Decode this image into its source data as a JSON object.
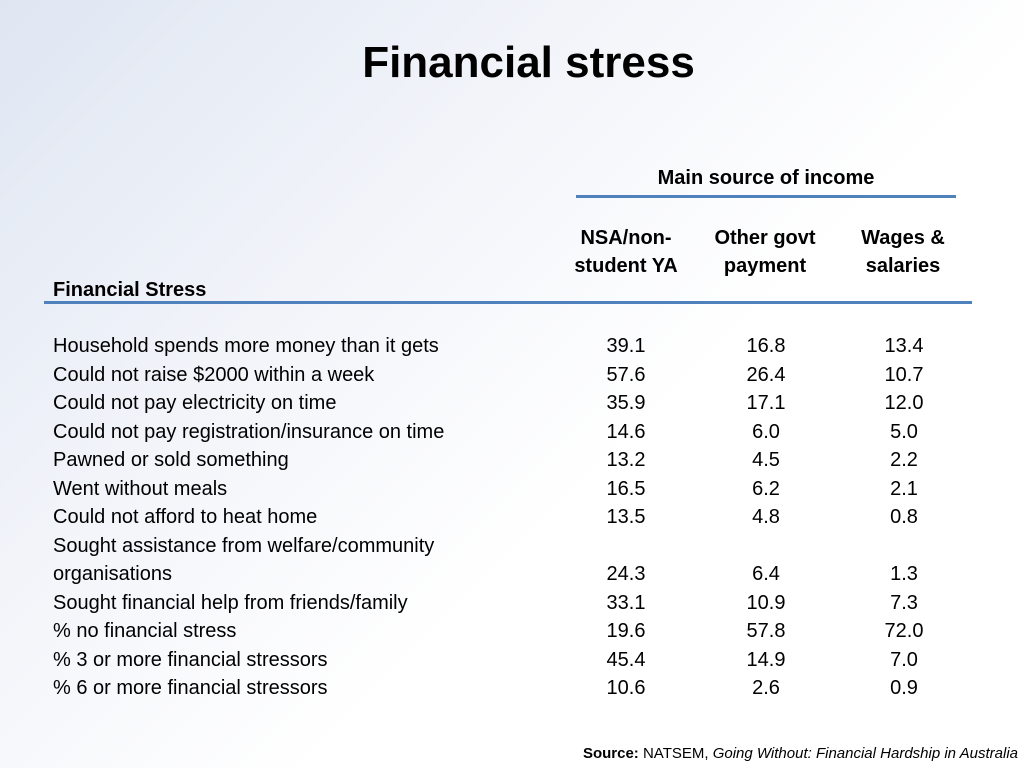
{
  "title": "Financial stress",
  "table": {
    "group_header": "Main source of income",
    "row_header": "Financial Stress",
    "columns": [
      "NSA/non-\nstudent YA",
      "Other govt\npayment",
      "Wages &\nsalaries"
    ],
    "rows": [
      {
        "label": "Household spends more money than it gets",
        "values": [
          "39.1",
          "16.8",
          "13.4"
        ]
      },
      {
        "label": "Could not raise $2000 within a week",
        "values": [
          "57.6",
          "26.4",
          "10.7"
        ]
      },
      {
        "label": "Could not pay electricity on time",
        "values": [
          "35.9",
          "17.1",
          "12.0"
        ]
      },
      {
        "label": "Could not pay registration/insurance on time",
        "values": [
          "14.6",
          "6.0",
          "5.0"
        ]
      },
      {
        "label": "Pawned or sold something",
        "values": [
          "13.2",
          "4.5",
          "2.2"
        ]
      },
      {
        "label": "Went without meals",
        "values": [
          "16.5",
          "6.2",
          "2.1"
        ]
      },
      {
        "label": "Could not afford to heat home",
        "values": [
          "13.5",
          "4.8",
          "0.8"
        ]
      },
      {
        "label": "Sought assistance from welfare/community organisations",
        "values": [
          "24.3",
          "6.4",
          "1.3"
        ]
      },
      {
        "label": "Sought financial help from friends/family",
        "values": [
          "33.1",
          "10.9",
          "7.3"
        ]
      },
      {
        "label": "% no financial stress",
        "values": [
          "19.6",
          "57.8",
          "72.0"
        ]
      },
      {
        "label": "% 3 or more financial stressors",
        "values": [
          "45.4",
          "14.9",
          "7.0"
        ]
      },
      {
        "label": "% 6 or more financial stressors",
        "values": [
          "10.6",
          "2.6",
          "0.9"
        ]
      }
    ]
  },
  "source": {
    "label": "Source:",
    "publisher": "NATSEM,",
    "title": "Going Without: Financial Hardship in Australia"
  },
  "colors": {
    "rule": "#4f81bd"
  }
}
